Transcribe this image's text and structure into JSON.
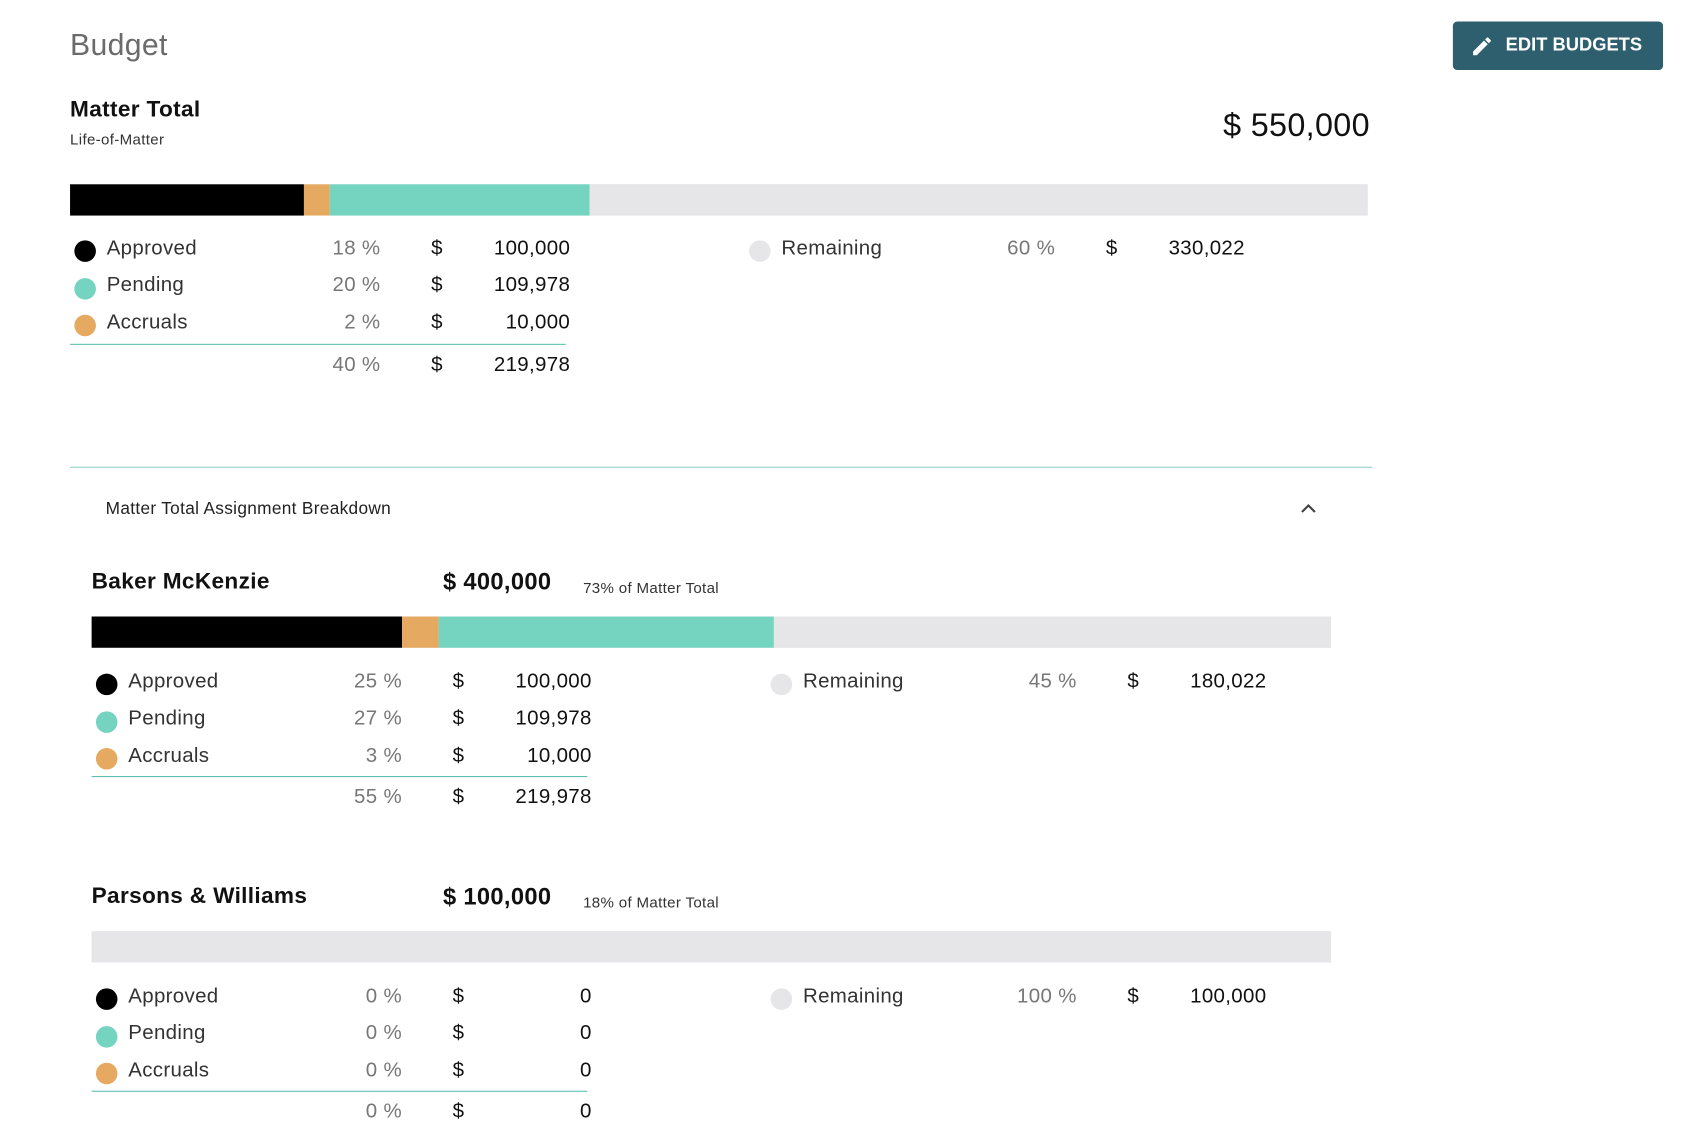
{
  "header": {
    "title": "Budget",
    "button": "EDIT BUDGETS"
  },
  "matter": {
    "title": "Matter Total",
    "subtitle": "Life-of-Matter",
    "total": "$ 550,000",
    "rows": [
      {
        "name": "Approved",
        "color": "#000000",
        "percent": {
          "value": 18,
          "label": "18 %"
        },
        "currency": "$",
        "amount": "100,000"
      },
      {
        "name": "Pending",
        "color": "#74d4bf",
        "percent": {
          "value": 20,
          "label": "20 %"
        },
        "currency": "$",
        "amount": "109,978"
      },
      {
        "name": "Accruals",
        "color": "#e6a962",
        "percent": {
          "value": 2,
          "label": "2 %"
        },
        "currency": "$",
        "amount": "10,000"
      }
    ],
    "sum": {
      "percent": {
        "value": 40,
        "label": "40 %"
      },
      "currency": "$",
      "amount": "219,978"
    },
    "remaining": {
      "name": "Remaining",
      "color": "#e6e6e8",
      "percent": {
        "value": 60,
        "label": "60 %"
      },
      "currency": "$",
      "amount": "330,022"
    }
  },
  "breakdown": {
    "title": "Matter Total Assignment Breakdown",
    "firms": [
      {
        "name": "Baker McKenzie",
        "total": "$ 400,000",
        "share": "73% of Matter Total",
        "rows": [
          {
            "name": "Approved",
            "color": "#000000",
            "percent": {
              "value": 25,
              "label": "25 %"
            },
            "currency": "$",
            "amount": "100,000"
          },
          {
            "name": "Pending",
            "color": "#74d4bf",
            "percent": {
              "value": 27,
              "label": "27 %"
            },
            "currency": "$",
            "amount": "109,978"
          },
          {
            "name": "Accruals",
            "color": "#e6a962",
            "percent": {
              "value": 3,
              "label": "3 %"
            },
            "currency": "$",
            "amount": "10,000"
          }
        ],
        "sum": {
          "percent": {
            "value": 55,
            "label": "55 %"
          },
          "currency": "$",
          "amount": "219,978"
        },
        "remaining": {
          "name": "Remaining",
          "color": "#e6e6e8",
          "percent": {
            "value": 45,
            "label": "45 %"
          },
          "currency": "$",
          "amount": "180,022"
        }
      },
      {
        "name": "Parsons & Williams",
        "total": "$ 100,000",
        "share": "18% of Matter Total",
        "rows": [
          {
            "name": "Approved",
            "color": "#000000",
            "percent": {
              "value": 0,
              "label": "0 %"
            },
            "currency": "$",
            "amount": "0"
          },
          {
            "name": "Pending",
            "color": "#74d4bf",
            "percent": {
              "value": 0,
              "label": "0 %"
            },
            "currency": "$",
            "amount": "0"
          },
          {
            "name": "Accruals",
            "color": "#e6a962",
            "percent": {
              "value": 0,
              "label": "0 %"
            },
            "currency": "$",
            "amount": "0"
          }
        ],
        "sum": {
          "percent": {
            "value": 0,
            "label": "0 %"
          },
          "currency": "$",
          "amount": "0"
        },
        "remaining": {
          "name": "Remaining",
          "color": "#e6e6e8",
          "percent": {
            "value": 100,
            "label": "100 %"
          },
          "currency": "$",
          "amount": "100,000"
        }
      }
    ]
  }
}
